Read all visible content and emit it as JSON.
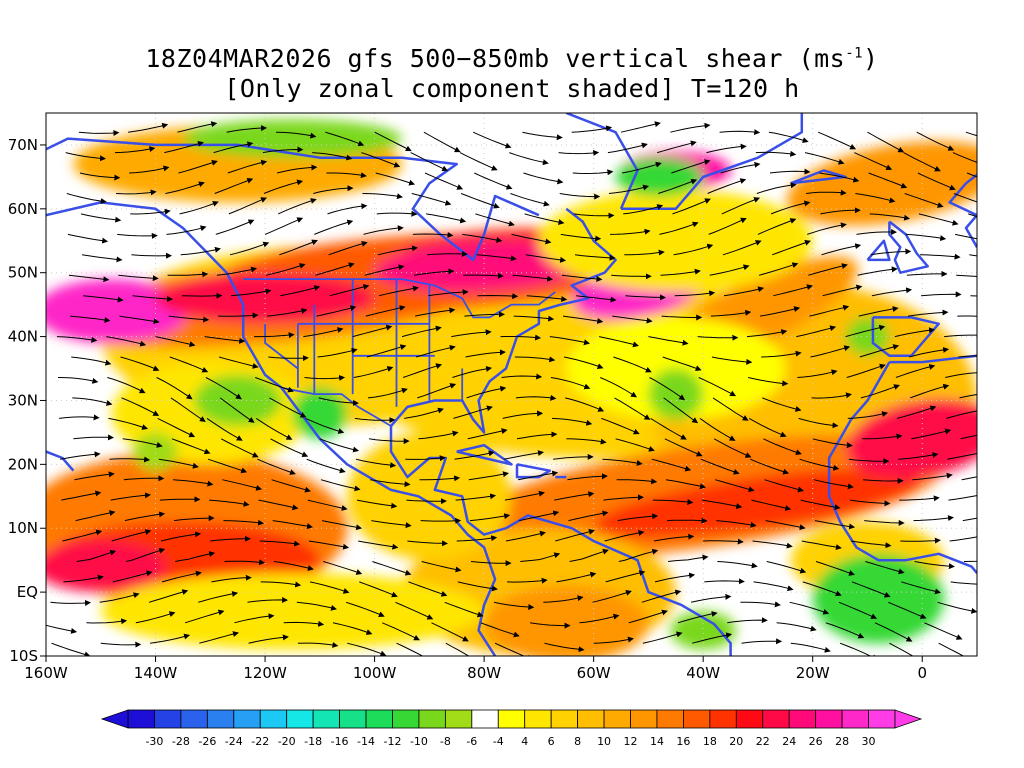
{
  "title": {
    "line1_main": "18Z04MAR2026 gfs 500−850mb vertical shear (ms",
    "line1_sup": "-1",
    "line1_end": ")",
    "line2": "[Only zonal component shaded] T=120 h"
  },
  "map": {
    "lon_range": [
      -160,
      10
    ],
    "lat_range": [
      -10,
      75
    ],
    "x_ticks": [
      {
        "lon": -160,
        "label": "160W"
      },
      {
        "lon": -140,
        "label": "140W"
      },
      {
        "lon": -120,
        "label": "120W"
      },
      {
        "lon": -100,
        "label": "100W"
      },
      {
        "lon": -80,
        "label": "80W"
      },
      {
        "lon": -60,
        "label": "60W"
      },
      {
        "lon": -40,
        "label": "40W"
      },
      {
        "lon": -20,
        "label": "20W"
      },
      {
        "lon": 0,
        "label": "0"
      }
    ],
    "y_ticks": [
      {
        "lat": -10,
        "label": "10S"
      },
      {
        "lat": 0,
        "label": "EQ"
      },
      {
        "lat": 10,
        "label": "10N"
      },
      {
        "lat": 20,
        "label": "20N"
      },
      {
        "lat": 30,
        "label": "30N"
      },
      {
        "lat": 40,
        "label": "40N"
      },
      {
        "lat": 50,
        "label": "50N"
      },
      {
        "lat": 60,
        "label": "60N"
      },
      {
        "lat": 70,
        "label": "70N"
      }
    ],
    "coastline_color": "#3a4fe8",
    "streamline_color": "#000000",
    "grid": "dotted"
  },
  "colorbar": {
    "labels": [
      "-30",
      "-28",
      "-26",
      "-24",
      "-22",
      "-20",
      "-18",
      "-16",
      "-14",
      "-12",
      "-10",
      "-8",
      "-6",
      "-4",
      "4",
      "6",
      "8",
      "10",
      "12",
      "14",
      "16",
      "18",
      "20",
      "22",
      "24",
      "26",
      "28",
      "30"
    ],
    "colors": [
      "#1e0fd8",
      "#2442e6",
      "#2b62ec",
      "#2b80f0",
      "#26a0f4",
      "#1cc8f4",
      "#15e6e6",
      "#13e6b4",
      "#16e088",
      "#1cdc5a",
      "#36d836",
      "#7ad81c",
      "#a0dc18",
      "#ffffff",
      "#ffff00",
      "#ffe600",
      "#ffd200",
      "#ffbe00",
      "#ffaa00",
      "#ff9600",
      "#ff7a00",
      "#ff5a00",
      "#ff3200",
      "#ff0a14",
      "#ff0a46",
      "#ff0a78",
      "#ff10a0",
      "#ff28c8",
      "#ff3ce6"
    ]
  }
}
